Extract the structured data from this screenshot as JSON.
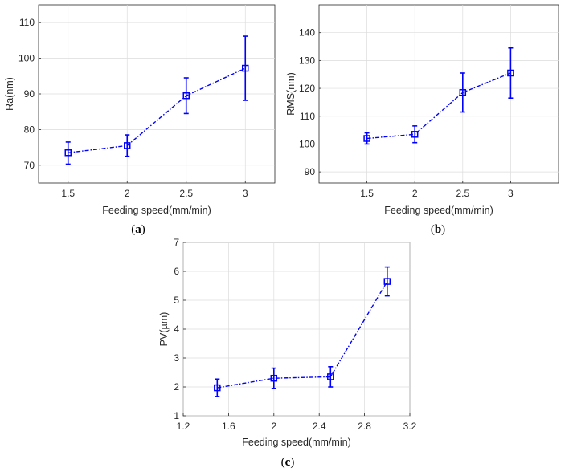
{
  "chart_data": [
    {
      "type": "line",
      "panel": "a",
      "panel_label_open": "(",
      "panel_label_letter": "a",
      "panel_label_close": ")",
      "xlabel": "Feeding speed(mm/min)",
      "ylabel": "Ra(nm)",
      "xlim": [
        1.25,
        3.25
      ],
      "ylim": [
        65,
        115
      ],
      "xticks": [
        1.5,
        2,
        2.5,
        3
      ],
      "xtick_labels": [
        "1.5",
        "2",
        "2.5",
        "3"
      ],
      "yticks": [
        70,
        80,
        90,
        100,
        110
      ],
      "ytick_labels": [
        "70",
        "80",
        "90",
        "100",
        "110"
      ],
      "grid": true,
      "series": [
        {
          "name": "Ra",
          "x": [
            1.5,
            2,
            2.5,
            3
          ],
          "y": [
            73.5,
            75.5,
            89.5,
            97.2
          ],
          "err_low": [
            3.2,
            3.0,
            5.0,
            9.0
          ],
          "err_high": [
            3.0,
            3.0,
            5.0,
            9.0
          ]
        }
      ]
    },
    {
      "type": "line",
      "panel": "b",
      "panel_label_open": "(",
      "panel_label_letter": "b",
      "panel_label_close": ")",
      "xlabel": "Feeding speed(mm/min)",
      "ylabel": "RMS(nm)",
      "xlim": [
        1.0,
        3.5
      ],
      "ylim": [
        86,
        150
      ],
      "xticks": [
        1.5,
        2,
        2.5,
        3
      ],
      "xtick_labels": [
        "1.5",
        "2",
        "2.5",
        "3"
      ],
      "yticks": [
        90,
        100,
        110,
        120,
        130,
        140
      ],
      "ytick_labels": [
        "90",
        "100",
        "110",
        "120",
        "130",
        "140"
      ],
      "grid": true,
      "series": [
        {
          "name": "RMS",
          "x": [
            1.5,
            2,
            2.5,
            3
          ],
          "y": [
            102.0,
            103.5,
            118.5,
            125.5
          ],
          "err_low": [
            2.0,
            3.0,
            7.0,
            9.0
          ],
          "err_high": [
            2.0,
            3.0,
            7.0,
            9.0
          ]
        }
      ]
    },
    {
      "type": "line",
      "panel": "c",
      "panel_label_open": "(",
      "panel_label_letter": "c",
      "panel_label_close": ")",
      "xlabel": "Feeding speed(mm/min)",
      "ylabel": "PV(µm)",
      "xlim": [
        1.2,
        3.2
      ],
      "ylim": [
        1,
        7
      ],
      "xticks": [
        1.2,
        1.6,
        2.0,
        2.4,
        2.8,
        3.2
      ],
      "xtick_labels": [
        "1.2",
        "1.6",
        "2",
        "2.4",
        "2.8",
        "3.2"
      ],
      "yticks": [
        1,
        2,
        3,
        4,
        5,
        6,
        7
      ],
      "ytick_labels": [
        "1",
        "2",
        "3",
        "4",
        "5",
        "6",
        "7"
      ],
      "grid": true,
      "series": [
        {
          "name": "PV",
          "x": [
            1.5,
            2,
            2.5,
            3
          ],
          "y": [
            1.97,
            2.3,
            2.35,
            5.65
          ],
          "err_low": [
            0.3,
            0.35,
            0.35,
            0.5
          ],
          "err_high": [
            0.3,
            0.35,
            0.35,
            0.5
          ]
        }
      ]
    }
  ]
}
